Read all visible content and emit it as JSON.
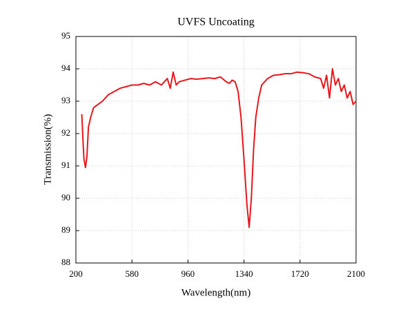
{
  "chart_data": {
    "type": "line",
    "title": "UVFS Uncoating",
    "x_label": "Wavelength(nm)",
    "y_label": "Transmission(%)",
    "xlim": [
      200,
      2100
    ],
    "xticks": [
      200,
      580,
      960,
      1340,
      1720,
      2100
    ],
    "ylim": [
      88,
      95
    ],
    "yticks": [
      88,
      89,
      90,
      91,
      92,
      93,
      94,
      95
    ],
    "grid": true,
    "x": [
      240,
      250,
      255,
      265,
      275,
      285,
      300,
      320,
      350,
      380,
      420,
      460,
      500,
      540,
      580,
      620,
      660,
      700,
      740,
      780,
      820,
      840,
      860,
      880,
      900,
      940,
      980,
      1020,
      1060,
      1100,
      1140,
      1180,
      1220,
      1240,
      1260,
      1280,
      1300,
      1320,
      1340,
      1360,
      1375,
      1390,
      1405,
      1420,
      1440,
      1460,
      1500,
      1540,
      1580,
      1620,
      1660,
      1700,
      1740,
      1780,
      1820,
      1860,
      1880,
      1900,
      1920,
      1940,
      1960,
      1980,
      2000,
      2020,
      2040,
      2060,
      2080,
      2100
    ],
    "series": [
      {
        "name": "UVFS",
        "color": "#e8161a",
        "values": [
          92.6,
          91.6,
          91.2,
          90.95,
          91.3,
          92.2,
          92.5,
          92.8,
          92.9,
          93.0,
          93.2,
          93.3,
          93.4,
          93.45,
          93.5,
          93.5,
          93.55,
          93.5,
          93.6,
          93.5,
          93.7,
          93.4,
          93.9,
          93.5,
          93.6,
          93.65,
          93.7,
          93.68,
          93.7,
          93.72,
          93.7,
          93.75,
          93.6,
          93.55,
          93.65,
          93.6,
          93.3,
          92.5,
          91.2,
          89.8,
          89.1,
          90.0,
          91.5,
          92.5,
          93.1,
          93.5,
          93.7,
          93.8,
          93.82,
          93.85,
          93.85,
          93.9,
          93.88,
          93.85,
          93.75,
          93.7,
          93.4,
          93.8,
          93.1,
          94.0,
          93.5,
          93.7,
          93.3,
          93.5,
          93.1,
          93.3,
          92.9,
          93.0
        ]
      }
    ]
  }
}
